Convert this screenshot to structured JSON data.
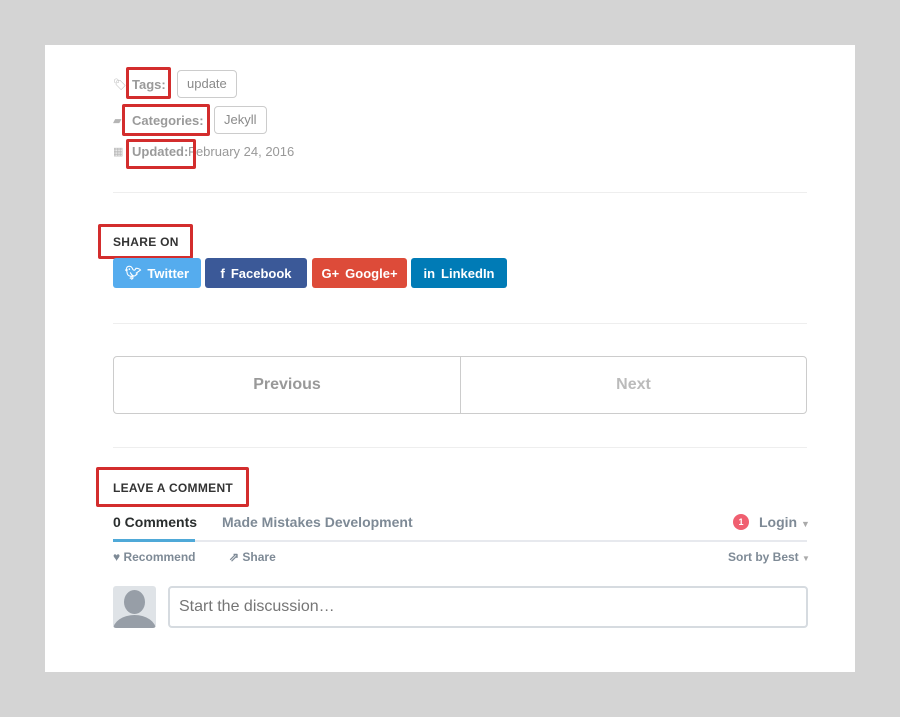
{
  "meta": {
    "tags_label": "Tags:",
    "tags": [
      "update"
    ],
    "categories_label": "Categories:",
    "categories": [
      "Jekyll"
    ],
    "updated_label": "Updated:",
    "updated_value": "February 24, 2016"
  },
  "share": {
    "heading": "SHARE ON",
    "buttons": [
      {
        "label": "Twitter",
        "icon": "twitter-icon",
        "color": "#55acee"
      },
      {
        "label": "Facebook",
        "icon": "facebook-icon",
        "color": "#3b5998"
      },
      {
        "label": "Google+",
        "icon": "google-plus-icon",
        "color": "#dd4b39"
      },
      {
        "label": "LinkedIn",
        "icon": "linkedin-icon",
        "color": "#007bb6"
      }
    ]
  },
  "pager": {
    "previous": "Previous",
    "next": "Next"
  },
  "comments": {
    "heading": "LEAVE A COMMENT",
    "tab_count": "0 Comments",
    "tab_site": "Made Mistakes Development",
    "notification_count": "1",
    "login": "Login",
    "recommend": "Recommend",
    "share": "Share",
    "sort": "Sort by Best",
    "placeholder": "Start the discussion…"
  },
  "colors": {
    "annotation": "#d32d2d",
    "accent": "#2e9fff"
  }
}
